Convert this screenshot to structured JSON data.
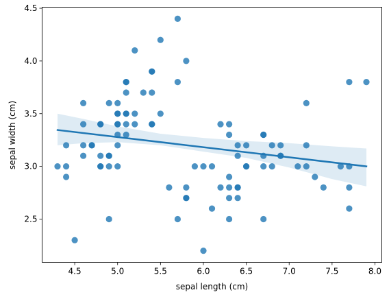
{
  "chart_data": {
    "type": "scatter",
    "title": "",
    "xlabel": "sepal length (cm)",
    "ylabel": "sepal width (cm)",
    "xlim": [
      4.12,
      8.08
    ],
    "ylim": [
      2.09,
      4.51
    ],
    "xticks": [
      4.5,
      5.0,
      5.5,
      6.0,
      6.5,
      7.0,
      7.5,
      8.0
    ],
    "xtick_labels": [
      "4.5",
      "5.0",
      "5.5",
      "6.0",
      "6.5",
      "7.0",
      "7.5",
      "8.0"
    ],
    "yticks": [
      2.5,
      3.0,
      3.5,
      4.0,
      4.5
    ],
    "ytick_labels": [
      "2.5",
      "3.0",
      "3.5",
      "4.0",
      "4.5"
    ],
    "grid": false,
    "colors": {
      "points": "#1f77b4",
      "line": "#1f77b4",
      "band": "#1f77b4"
    },
    "points": [
      {
        "x": 4.3,
        "y": 3.0
      },
      {
        "x": 4.4,
        "y": 3.2
      },
      {
        "x": 4.4,
        "y": 3.0
      },
      {
        "x": 4.4,
        "y": 2.9
      },
      {
        "x": 4.5,
        "y": 2.3
      },
      {
        "x": 4.6,
        "y": 3.6
      },
      {
        "x": 4.6,
        "y": 3.4
      },
      {
        "x": 4.6,
        "y": 3.2
      },
      {
        "x": 4.6,
        "y": 3.1
      },
      {
        "x": 4.7,
        "y": 3.2
      },
      {
        "x": 4.7,
        "y": 3.2
      },
      {
        "x": 4.8,
        "y": 3.4
      },
      {
        "x": 4.8,
        "y": 3.4
      },
      {
        "x": 4.8,
        "y": 3.1
      },
      {
        "x": 4.8,
        "y": 3.0
      },
      {
        "x": 4.8,
        "y": 3.0
      },
      {
        "x": 4.9,
        "y": 3.6
      },
      {
        "x": 4.9,
        "y": 3.1
      },
      {
        "x": 4.9,
        "y": 3.1
      },
      {
        "x": 4.9,
        "y": 3.0
      },
      {
        "x": 4.9,
        "y": 2.5
      },
      {
        "x": 5.0,
        "y": 3.6
      },
      {
        "x": 5.0,
        "y": 3.5
      },
      {
        "x": 5.0,
        "y": 3.5
      },
      {
        "x": 5.0,
        "y": 3.4
      },
      {
        "x": 5.0,
        "y": 3.4
      },
      {
        "x": 5.0,
        "y": 3.3
      },
      {
        "x": 5.0,
        "y": 3.2
      },
      {
        "x": 5.0,
        "y": 3.0
      },
      {
        "x": 5.1,
        "y": 3.8
      },
      {
        "x": 5.1,
        "y": 3.8
      },
      {
        "x": 5.1,
        "y": 3.7
      },
      {
        "x": 5.1,
        "y": 3.5
      },
      {
        "x": 5.1,
        "y": 3.5
      },
      {
        "x": 5.1,
        "y": 3.4
      },
      {
        "x": 5.1,
        "y": 3.3
      },
      {
        "x": 5.2,
        "y": 4.1
      },
      {
        "x": 5.2,
        "y": 3.5
      },
      {
        "x": 5.2,
        "y": 3.4
      },
      {
        "x": 5.3,
        "y": 3.7
      },
      {
        "x": 5.4,
        "y": 3.9
      },
      {
        "x": 5.4,
        "y": 3.9
      },
      {
        "x": 5.4,
        "y": 3.7
      },
      {
        "x": 5.4,
        "y": 3.4
      },
      {
        "x": 5.4,
        "y": 3.4
      },
      {
        "x": 5.5,
        "y": 4.2
      },
      {
        "x": 5.5,
        "y": 3.5
      },
      {
        "x": 5.6,
        "y": 2.8
      },
      {
        "x": 5.7,
        "y": 4.4
      },
      {
        "x": 5.7,
        "y": 3.8
      },
      {
        "x": 5.7,
        "y": 2.5
      },
      {
        "x": 5.8,
        "y": 4.0
      },
      {
        "x": 5.8,
        "y": 2.8
      },
      {
        "x": 5.8,
        "y": 2.7
      },
      {
        "x": 5.8,
        "y": 2.7
      },
      {
        "x": 5.9,
        "y": 3.0
      },
      {
        "x": 6.0,
        "y": 3.0
      },
      {
        "x": 6.0,
        "y": 2.2
      },
      {
        "x": 6.1,
        "y": 3.0
      },
      {
        "x": 6.1,
        "y": 2.6
      },
      {
        "x": 6.2,
        "y": 3.4
      },
      {
        "x": 6.2,
        "y": 2.8
      },
      {
        "x": 6.3,
        "y": 3.4
      },
      {
        "x": 6.3,
        "y": 3.3
      },
      {
        "x": 6.3,
        "y": 2.9
      },
      {
        "x": 6.3,
        "y": 2.8
      },
      {
        "x": 6.3,
        "y": 2.7
      },
      {
        "x": 6.3,
        "y": 2.5
      },
      {
        "x": 6.4,
        "y": 3.2
      },
      {
        "x": 6.4,
        "y": 3.1
      },
      {
        "x": 6.4,
        "y": 2.8
      },
      {
        "x": 6.4,
        "y": 2.8
      },
      {
        "x": 6.4,
        "y": 2.7
      },
      {
        "x": 6.5,
        "y": 3.2
      },
      {
        "x": 6.5,
        "y": 3.0
      },
      {
        "x": 6.5,
        "y": 3.0
      },
      {
        "x": 6.7,
        "y": 3.3
      },
      {
        "x": 6.7,
        "y": 3.3
      },
      {
        "x": 6.7,
        "y": 3.1
      },
      {
        "x": 6.7,
        "y": 3.0
      },
      {
        "x": 6.7,
        "y": 2.5
      },
      {
        "x": 6.8,
        "y": 3.2
      },
      {
        "x": 6.8,
        "y": 3.0
      },
      {
        "x": 6.9,
        "y": 3.2
      },
      {
        "x": 6.9,
        "y": 3.1
      },
      {
        "x": 6.9,
        "y": 3.1
      },
      {
        "x": 7.1,
        "y": 3.0
      },
      {
        "x": 7.2,
        "y": 3.6
      },
      {
        "x": 7.2,
        "y": 3.2
      },
      {
        "x": 7.2,
        "y": 3.0
      },
      {
        "x": 7.3,
        "y": 2.9
      },
      {
        "x": 7.4,
        "y": 2.8
      },
      {
        "x": 7.6,
        "y": 3.0
      },
      {
        "x": 7.7,
        "y": 3.8
      },
      {
        "x": 7.7,
        "y": 3.0
      },
      {
        "x": 7.7,
        "y": 2.8
      },
      {
        "x": 7.7,
        "y": 2.6
      },
      {
        "x": 7.9,
        "y": 3.8
      }
    ],
    "regression_line": {
      "x": [
        4.3,
        7.9
      ],
      "y": [
        3.345,
        3.0
      ]
    },
    "confidence_band": {
      "x": [
        4.3,
        4.6,
        5.0,
        5.5,
        6.0,
        6.5,
        7.0,
        7.5,
        7.9
      ],
      "upper": [
        3.5,
        3.45,
        3.38,
        3.31,
        3.27,
        3.24,
        3.22,
        3.19,
        3.17
      ],
      "lower": [
        3.2,
        3.22,
        3.23,
        3.2,
        3.14,
        3.08,
        2.99,
        2.88,
        2.81
      ]
    }
  }
}
